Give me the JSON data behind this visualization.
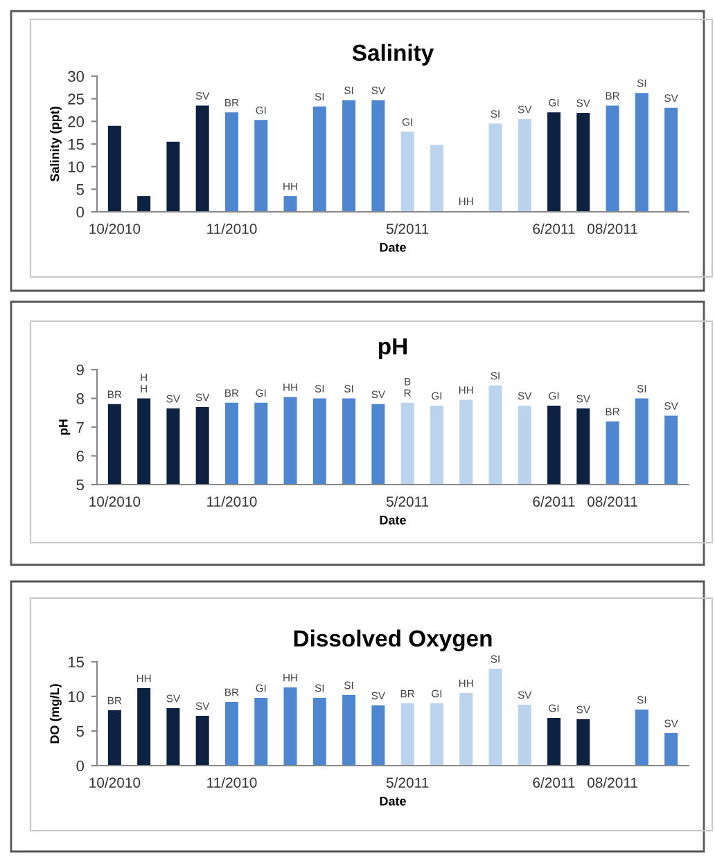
{
  "chart_data": [
    {
      "type": "bar",
      "title": "Salinity",
      "xlabel": "Date",
      "ylabel": "Salinity (ppt)",
      "categories": [
        "10/2010",
        null,
        null,
        null,
        "11/2010",
        null,
        null,
        null,
        null,
        null,
        "5/2011",
        null,
        null,
        null,
        null,
        "6/2011",
        null,
        "08/2011",
        null,
        null
      ],
      "values": [
        19,
        3.5,
        15.5,
        23.5,
        22,
        20.3,
        3.5,
        23.3,
        24.7,
        24.7,
        17.7,
        14.8,
        0.2,
        19.5,
        20.5,
        22,
        21.9,
        23.5,
        26.3,
        23
      ],
      "colors": [
        "#0d2240",
        "#0d2240",
        "#0d2240",
        "#0d2240",
        "#4f86d0",
        "#4f86d0",
        "#4f86d0",
        "#4f86d0",
        "#4f86d0",
        "#4f86d0",
        "#bcd3ee",
        "#bcd3ee",
        "#bcd3ee",
        "#bcd3ee",
        "#bcd3ee",
        "#0d2240",
        "#0d2240",
        "#4f86d0",
        "#4f86d0",
        "#4f86d0"
      ],
      "value_labels": [
        null,
        null,
        null,
        "SV",
        "BR",
        "GI",
        "HH",
        "SI",
        "SI",
        "SV",
        "GI",
        null,
        "HH",
        "SI",
        "SV",
        "GI",
        "SV",
        "BR",
        "SI",
        "SV"
      ],
      "ylim": [
        0,
        30
      ],
      "yticks": [
        0,
        5,
        10,
        15,
        20,
        25,
        30
      ],
      "grid": false,
      "legend": false
    },
    {
      "type": "bar",
      "title": "pH",
      "xlabel": "Date",
      "ylabel": "pH",
      "categories": [
        "10/2010",
        null,
        null,
        null,
        "11/2010",
        null,
        null,
        null,
        null,
        null,
        "5/2011",
        null,
        null,
        null,
        null,
        "6/2011",
        null,
        "08/2011",
        null,
        null
      ],
      "values": [
        7.8,
        8.0,
        7.65,
        7.7,
        7.85,
        7.85,
        8.05,
        8.0,
        8.0,
        7.8,
        7.85,
        7.75,
        7.95,
        8.45,
        7.75,
        7.75,
        7.65,
        7.2,
        8.0,
        7.4
      ],
      "colors": [
        "#0d2240",
        "#0d2240",
        "#0d2240",
        "#0d2240",
        "#4f86d0",
        "#4f86d0",
        "#4f86d0",
        "#4f86d0",
        "#4f86d0",
        "#4f86d0",
        "#bcd3ee",
        "#bcd3ee",
        "#bcd3ee",
        "#bcd3ee",
        "#bcd3ee",
        "#0d2240",
        "#0d2240",
        "#4f86d0",
        "#4f86d0",
        "#4f86d0"
      ],
      "value_labels": [
        "BR",
        "H\nH",
        "SV",
        "SV",
        "BR",
        "GI",
        "HH",
        "SI",
        "SI",
        "SV",
        "B\nR",
        "GI",
        "HH",
        "SI",
        "SV",
        "GI",
        "SV",
        "BR",
        "SI",
        "SV"
      ],
      "ylim": [
        5,
        9
      ],
      "yticks": [
        5,
        6,
        7,
        8,
        9
      ],
      "grid": false,
      "legend": false
    },
    {
      "type": "bar",
      "title": "Dissolved Oxygen",
      "xlabel": "Date",
      "ylabel": "DO (mg/L)",
      "categories": [
        "10/2010",
        null,
        null,
        null,
        "11/2010",
        null,
        null,
        null,
        null,
        null,
        "5/2011",
        null,
        null,
        null,
        null,
        "6/2011",
        null,
        "08/2011",
        null,
        null
      ],
      "values": [
        8,
        11.2,
        8.3,
        7.2,
        9.2,
        9.8,
        11.3,
        9.8,
        10.2,
        8.7,
        9.0,
        9.0,
        10.5,
        14.0,
        8.8,
        6.9,
        6.7,
        null,
        8.1,
        4.7
      ],
      "colors": [
        "#0d2240",
        "#0d2240",
        "#0d2240",
        "#0d2240",
        "#4f86d0",
        "#4f86d0",
        "#4f86d0",
        "#4f86d0",
        "#4f86d0",
        "#4f86d0",
        "#bcd3ee",
        "#bcd3ee",
        "#bcd3ee",
        "#bcd3ee",
        "#bcd3ee",
        "#0d2240",
        "#0d2240",
        "#4f86d0",
        "#4f86d0",
        "#4f86d0"
      ],
      "value_labels": [
        "BR",
        "HH",
        "SV",
        "SV",
        "BR",
        "GI",
        "HH",
        "SI",
        "SI",
        "SV",
        "BR",
        "GI",
        "HH",
        "SI",
        "SV",
        "GI",
        "SV",
        null,
        "SI",
        "SV"
      ],
      "ylim": [
        0,
        15
      ],
      "yticks": [
        0,
        5,
        10,
        15
      ],
      "grid": false,
      "legend": false
    }
  ]
}
